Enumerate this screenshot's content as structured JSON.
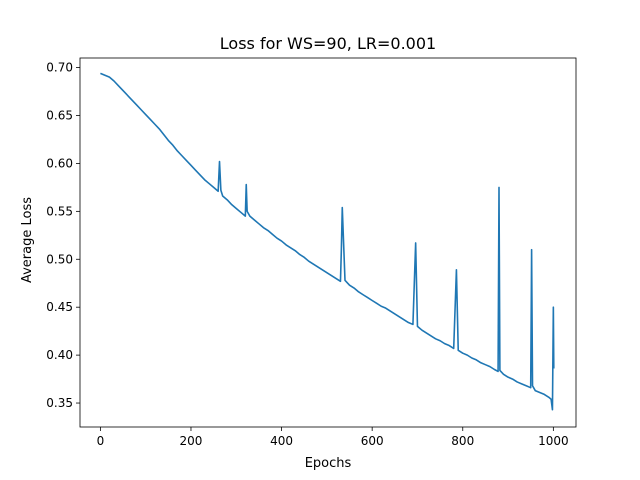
{
  "chart_data": {
    "type": "line",
    "title": "Loss for WS=90, LR=0.001",
    "xlabel": "Epochs",
    "ylabel": "Average Loss",
    "xlim": [
      -45,
      1050
    ],
    "ylim": [
      0.325,
      0.71
    ],
    "xticks": [
      0,
      200,
      400,
      600,
      800,
      1000
    ],
    "yticks": [
      0.35,
      0.4,
      0.45,
      0.5,
      0.55,
      0.6,
      0.65,
      0.7
    ],
    "xtick_labels": [
      "0",
      "200",
      "400",
      "600",
      "800",
      "1000"
    ],
    "ytick_labels": [
      "0.35",
      "0.40",
      "0.45",
      "0.50",
      "0.55",
      "0.60",
      "0.65",
      "0.70"
    ],
    "grid": false,
    "series": [
      {
        "color": "#1f77b4",
        "x": [
          0,
          10,
          20,
          30,
          40,
          50,
          60,
          70,
          80,
          90,
          100,
          110,
          120,
          130,
          140,
          150,
          160,
          170,
          180,
          190,
          200,
          210,
          220,
          230,
          240,
          250,
          260,
          263,
          266,
          270,
          280,
          290,
          300,
          310,
          320,
          322,
          324,
          330,
          340,
          350,
          360,
          370,
          380,
          390,
          400,
          410,
          420,
          430,
          440,
          450,
          460,
          470,
          480,
          490,
          500,
          510,
          520,
          530,
          532,
          534,
          540,
          550,
          560,
          570,
          580,
          590,
          600,
          610,
          620,
          630,
          640,
          650,
          660,
          670,
          680,
          690,
          696,
          700,
          710,
          720,
          730,
          740,
          750,
          760,
          770,
          780,
          786,
          790,
          800,
          810,
          820,
          830,
          840,
          850,
          860,
          870,
          878,
          880,
          882,
          890,
          900,
          910,
          920,
          930,
          940,
          950,
          952,
          954,
          960,
          970,
          980,
          990,
          995,
          998,
          1000,
          1001
        ],
        "y": [
          0.694,
          0.692,
          0.69,
          0.686,
          0.681,
          0.676,
          0.671,
          0.666,
          0.661,
          0.656,
          0.651,
          0.646,
          0.641,
          0.636,
          0.63,
          0.624,
          0.619,
          0.613,
          0.608,
          0.603,
          0.598,
          0.593,
          0.588,
          0.583,
          0.579,
          0.575,
          0.571,
          0.602,
          0.572,
          0.566,
          0.562,
          0.557,
          0.553,
          0.549,
          0.545,
          0.578,
          0.55,
          0.545,
          0.541,
          0.537,
          0.533,
          0.53,
          0.526,
          0.522,
          0.519,
          0.515,
          0.512,
          0.509,
          0.505,
          0.502,
          0.498,
          0.495,
          0.492,
          0.489,
          0.486,
          0.483,
          0.48,
          0.477,
          0.51,
          0.554,
          0.478,
          0.473,
          0.47,
          0.466,
          0.463,
          0.46,
          0.457,
          0.454,
          0.451,
          0.449,
          0.446,
          0.443,
          0.44,
          0.437,
          0.434,
          0.432,
          0.517,
          0.43,
          0.426,
          0.423,
          0.42,
          0.417,
          0.415,
          0.412,
          0.41,
          0.407,
          0.489,
          0.405,
          0.402,
          0.4,
          0.397,
          0.395,
          0.392,
          0.39,
          0.388,
          0.385,
          0.383,
          0.575,
          0.384,
          0.38,
          0.377,
          0.375,
          0.372,
          0.37,
          0.368,
          0.366,
          0.51,
          0.368,
          0.363,
          0.361,
          0.359,
          0.356,
          0.354,
          0.343,
          0.45,
          0.386
        ]
      }
    ]
  }
}
